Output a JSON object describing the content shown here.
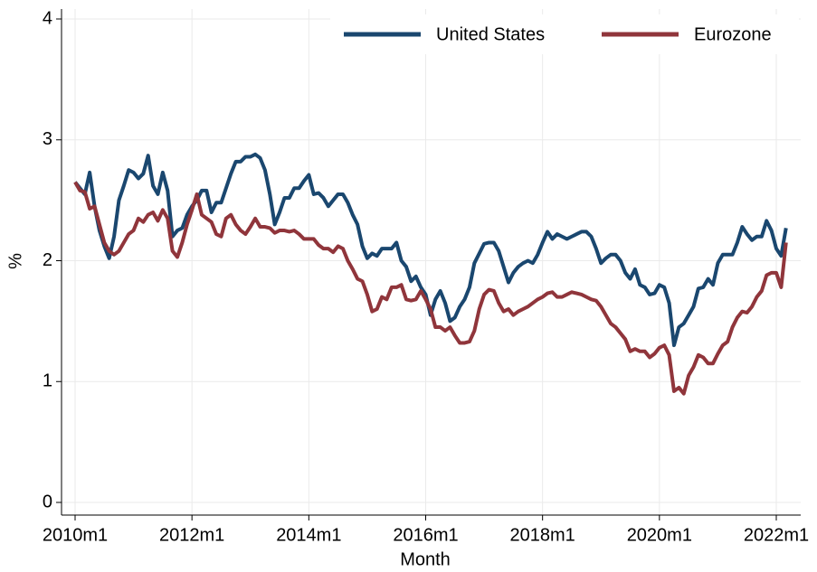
{
  "chart_data": {
    "type": "line",
    "xlabel": "Month",
    "ylabel": "%",
    "x": [
      "2010m1",
      "2010m2",
      "2010m3",
      "2010m4",
      "2010m5",
      "2010m6",
      "2010m7",
      "2010m8",
      "2010m9",
      "2010m10",
      "2010m11",
      "2010m12",
      "2011m1",
      "2011m2",
      "2011m3",
      "2011m4",
      "2011m5",
      "2011m6",
      "2011m7",
      "2011m8",
      "2011m9",
      "2011m10",
      "2011m11",
      "2011m12",
      "2012m1",
      "2012m2",
      "2012m3",
      "2012m4",
      "2012m5",
      "2012m6",
      "2012m7",
      "2012m8",
      "2012m9",
      "2012m10",
      "2012m11",
      "2012m12",
      "2013m1",
      "2013m2",
      "2013m3",
      "2013m4",
      "2013m5",
      "2013m6",
      "2013m7",
      "2013m8",
      "2013m9",
      "2013m10",
      "2013m11",
      "2013m12",
      "2014m1",
      "2014m2",
      "2014m3",
      "2014m4",
      "2014m5",
      "2014m6",
      "2014m7",
      "2014m8",
      "2014m9",
      "2014m10",
      "2014m11",
      "2014m12",
      "2015m1",
      "2015m2",
      "2015m3",
      "2015m4",
      "2015m5",
      "2015m6",
      "2015m7",
      "2015m8",
      "2015m9",
      "2015m10",
      "2015m11",
      "2015m12",
      "2016m1",
      "2016m2",
      "2016m3",
      "2016m4",
      "2016m5",
      "2016m6",
      "2016m7",
      "2016m8",
      "2016m9",
      "2016m10",
      "2016m11",
      "2016m12",
      "2017m1",
      "2017m2",
      "2017m3",
      "2017m4",
      "2017m5",
      "2017m6",
      "2017m7",
      "2017m8",
      "2017m9",
      "2017m10",
      "2017m11",
      "2017m12",
      "2018m1",
      "2018m2",
      "2018m3",
      "2018m4",
      "2018m5",
      "2018m6",
      "2018m7",
      "2018m8",
      "2018m9",
      "2018m10",
      "2018m11",
      "2018m12",
      "2019m1",
      "2019m2",
      "2019m3",
      "2019m4",
      "2019m5",
      "2019m6",
      "2019m7",
      "2019m8",
      "2019m9",
      "2019m10",
      "2019m11",
      "2019m12",
      "2020m1",
      "2020m2",
      "2020m3",
      "2020m4",
      "2020m5",
      "2020m6",
      "2020m7",
      "2020m8",
      "2020m9",
      "2020m10",
      "2020m11",
      "2020m12",
      "2021m1",
      "2021m2",
      "2021m3",
      "2021m4",
      "2021m5",
      "2021m6",
      "2021m7",
      "2021m8",
      "2021m9",
      "2021m10",
      "2021m11",
      "2021m12",
      "2022m1",
      "2022m2",
      "2022m3"
    ],
    "xticks": [
      "2010m1",
      "2012m1",
      "2014m1",
      "2016m1",
      "2018m1",
      "2020m1",
      "2022m1"
    ],
    "ylim": [
      0,
      4
    ],
    "yticks": [
      0,
      1,
      2,
      3,
      4
    ],
    "grid": true,
    "legend": "top",
    "series": [
      {
        "name": "United States",
        "color": "#1a476f",
        "values": [
          2.65,
          2.6,
          2.55,
          2.73,
          2.45,
          2.25,
          2.12,
          2.02,
          2.2,
          2.5,
          2.62,
          2.75,
          2.73,
          2.68,
          2.72,
          2.87,
          2.62,
          2.55,
          2.73,
          2.58,
          2.2,
          2.25,
          2.27,
          2.38,
          2.45,
          2.5,
          2.58,
          2.58,
          2.4,
          2.48,
          2.48,
          2.6,
          2.72,
          2.82,
          2.82,
          2.86,
          2.86,
          2.88,
          2.85,
          2.75,
          2.55,
          2.3,
          2.4,
          2.52,
          2.52,
          2.6,
          2.6,
          2.66,
          2.71,
          2.55,
          2.56,
          2.52,
          2.45,
          2.5,
          2.55,
          2.55,
          2.48,
          2.38,
          2.3,
          2.12,
          2.02,
          2.06,
          2.04,
          2.1,
          2.1,
          2.1,
          2.15,
          2.0,
          1.95,
          1.83,
          1.87,
          1.78,
          1.72,
          1.55,
          1.68,
          1.75,
          1.65,
          1.5,
          1.53,
          1.62,
          1.68,
          1.78,
          1.98,
          2.06,
          2.14,
          2.15,
          2.15,
          2.08,
          1.95,
          1.82,
          1.9,
          1.95,
          1.98,
          2.0,
          1.98,
          2.05,
          2.15,
          2.24,
          2.18,
          2.22,
          2.2,
          2.18,
          2.2,
          2.22,
          2.24,
          2.24,
          2.2,
          2.1,
          1.98,
          2.02,
          2.05,
          2.05,
          2.0,
          1.9,
          1.85,
          1.93,
          1.8,
          1.78,
          1.72,
          1.73,
          1.8,
          1.78,
          1.65,
          1.3,
          1.45,
          1.48,
          1.55,
          1.62,
          1.77,
          1.78,
          1.85,
          1.8,
          1.98,
          2.05,
          2.05,
          2.05,
          2.15,
          2.28,
          2.22,
          2.17,
          2.2,
          2.2,
          2.33,
          2.25,
          2.1,
          2.04,
          2.27
        ]
      },
      {
        "name": "Eurozone",
        "color": "#90353b",
        "values": [
          2.65,
          2.58,
          2.57,
          2.43,
          2.45,
          2.3,
          2.15,
          2.08,
          2.05,
          2.08,
          2.15,
          2.22,
          2.25,
          2.35,
          2.32,
          2.38,
          2.4,
          2.33,
          2.42,
          2.35,
          2.08,
          2.03,
          2.15,
          2.3,
          2.42,
          2.55,
          2.38,
          2.35,
          2.32,
          2.22,
          2.2,
          2.35,
          2.38,
          2.3,
          2.25,
          2.22,
          2.28,
          2.35,
          2.28,
          2.28,
          2.27,
          2.23,
          2.25,
          2.25,
          2.24,
          2.25,
          2.22,
          2.18,
          2.18,
          2.18,
          2.13,
          2.1,
          2.1,
          2.07,
          2.12,
          2.1,
          2.0,
          1.93,
          1.85,
          1.83,
          1.72,
          1.58,
          1.6,
          1.7,
          1.68,
          1.78,
          1.78,
          1.8,
          1.68,
          1.67,
          1.68,
          1.75,
          1.68,
          1.6,
          1.45,
          1.45,
          1.42,
          1.45,
          1.38,
          1.32,
          1.32,
          1.33,
          1.42,
          1.6,
          1.72,
          1.76,
          1.75,
          1.65,
          1.58,
          1.6,
          1.55,
          1.58,
          1.6,
          1.62,
          1.65,
          1.68,
          1.7,
          1.73,
          1.74,
          1.7,
          1.7,
          1.72,
          1.74,
          1.73,
          1.72,
          1.7,
          1.68,
          1.67,
          1.62,
          1.55,
          1.48,
          1.45,
          1.4,
          1.35,
          1.25,
          1.27,
          1.25,
          1.25,
          1.2,
          1.23,
          1.28,
          1.3,
          1.22,
          0.92,
          0.95,
          0.9,
          1.05,
          1.12,
          1.22,
          1.2,
          1.15,
          1.15,
          1.23,
          1.3,
          1.33,
          1.45,
          1.53,
          1.58,
          1.57,
          1.62,
          1.7,
          1.75,
          1.88,
          1.9,
          1.9,
          1.78,
          2.15
        ]
      }
    ]
  }
}
